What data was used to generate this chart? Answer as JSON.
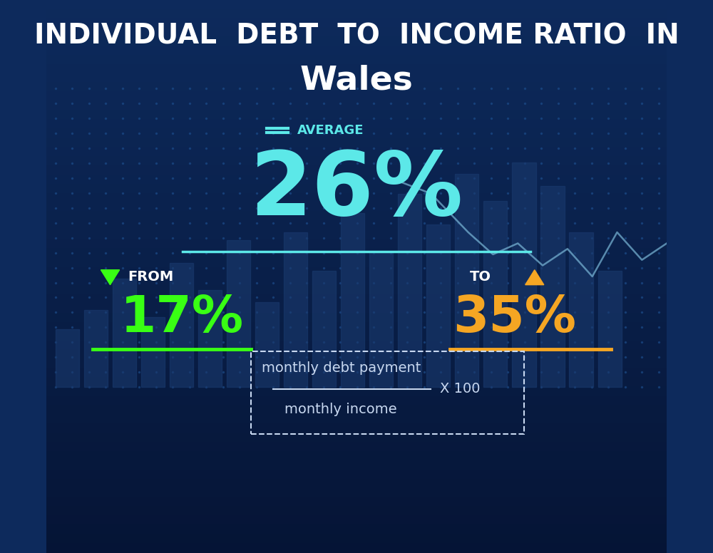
{
  "title_line1": "INDIVIDUAL  DEBT  TO  INCOME RATIO  IN",
  "title_line2": "Wales",
  "bg_color_top": "#0d2a5c",
  "bg_color_bottom": "#051435",
  "avg_label": "AVERAGE",
  "avg_value": "26%",
  "avg_color": "#5ce8e8",
  "avg_line_color": "#5ce8e8",
  "from_label": "FROM",
  "from_value": "17%",
  "from_color": "#39ff14",
  "from_arrow_color": "#39ff14",
  "to_label": "TO",
  "to_value": "35%",
  "to_color": "#f5a623",
  "to_arrow_color": "#f5a623",
  "formula_line1": "monthly debt payment",
  "formula_line2": "monthly income",
  "formula_multiplier": "X 100",
  "formula_text_color": "#c8d8f0",
  "title_color": "#ffffff",
  "avg_icon_color": "#5ce8e8",
  "bar_bg_color": "#1a3a70",
  "dot_color": "#1e4080"
}
